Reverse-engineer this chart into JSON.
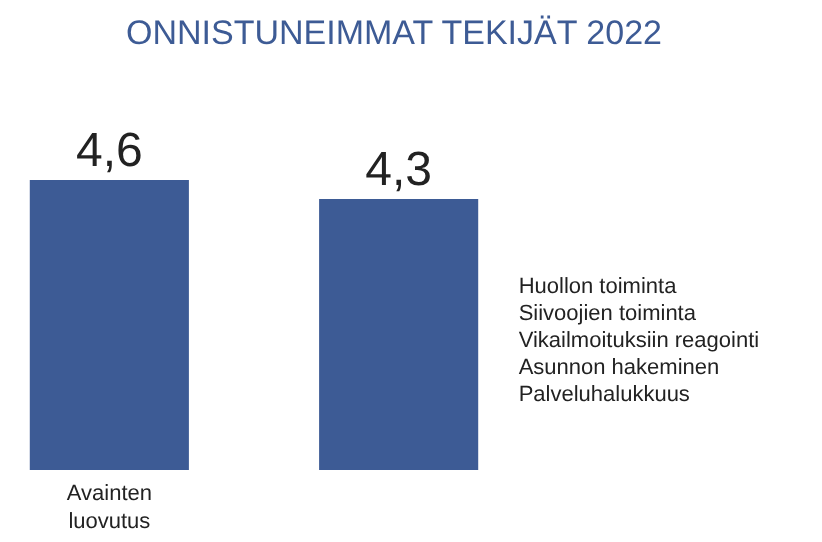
{
  "chart_data": {
    "type": "bar",
    "title": "ONNISTUNEIMMAT TEKIJÄT 2022",
    "categories": [
      "Avainten\nluovutus",
      null
    ],
    "values": [
      4.6,
      4.3
    ],
    "value_labels": [
      "4,6",
      "4,3"
    ],
    "color": "#3d5b95",
    "annotations": [
      "Huollon toiminta\nSiivoojien toiminta\nVikailmoituksiin reagointi\nAsunnon hakeminen\nPalveluhalukkuus"
    ]
  }
}
